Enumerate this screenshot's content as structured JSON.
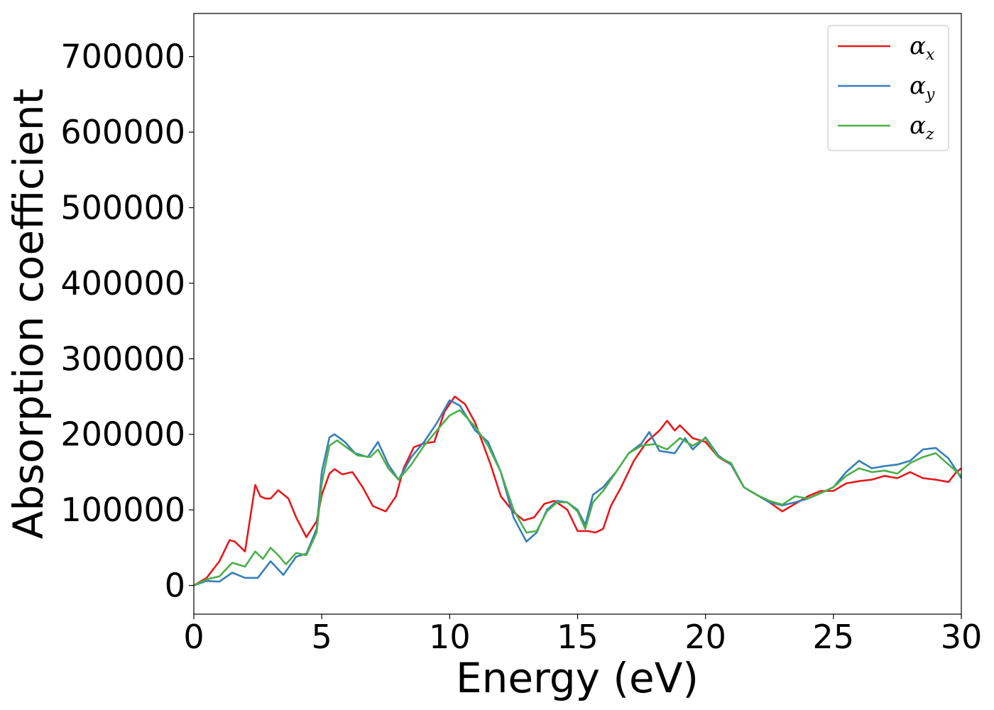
{
  "chart_data": {
    "type": "line",
    "title": "",
    "xlabel": "Energy (eV)",
    "ylabel": "Absorption coefficient",
    "xlim": [
      0,
      30
    ],
    "ylim": [
      -38000,
      757000
    ],
    "xticks": [
      0,
      5,
      10,
      15,
      20,
      25,
      30
    ],
    "yticks": [
      0,
      100000,
      200000,
      300000,
      400000,
      500000,
      600000,
      700000
    ],
    "xtick_labels": [
      "0",
      "5",
      "10",
      "15",
      "20",
      "25",
      "30"
    ],
    "ytick_labels": [
      "0",
      "100000",
      "200000",
      "300000",
      "400000",
      "500000",
      "600000",
      "700000"
    ],
    "grid": false,
    "legend_position": "top-right",
    "series": [
      {
        "name": "αx",
        "label_base": "α",
        "label_sub": "x",
        "color": "#e41a1c",
        "x": [
          0,
          0.5,
          1.0,
          1.4,
          1.6,
          2.0,
          2.4,
          2.6,
          2.8,
          3.0,
          3.3,
          3.7,
          4.0,
          4.4,
          4.8,
          5.0,
          5.3,
          5.5,
          5.8,
          6.2,
          6.6,
          7.0,
          7.5,
          7.9,
          8.2,
          8.6,
          9.0,
          9.4,
          9.8,
          10.2,
          10.6,
          11.0,
          11.6,
          12.0,
          12.5,
          12.9,
          13.3,
          13.7,
          14.1,
          14.6,
          15.0,
          15.4,
          15.7,
          16.0,
          16.3,
          16.7,
          17.2,
          17.7,
          18.2,
          18.5,
          18.8,
          19.0,
          19.5,
          20.0,
          20.5,
          21.0,
          21.5,
          22.0,
          22.5,
          23.0,
          23.5,
          24.0,
          24.5,
          25.0,
          25.5,
          26.0,
          26.5,
          27.0,
          27.5,
          28.0,
          28.5,
          29.0,
          29.5,
          29.8,
          30.0
        ],
        "y": [
          0,
          10000,
          32000,
          60000,
          58000,
          45000,
          133000,
          118000,
          115000,
          115000,
          126000,
          115000,
          90000,
          64000,
          85000,
          120000,
          148000,
          154000,
          147000,
          150000,
          130000,
          105000,
          98000,
          118000,
          155000,
          183000,
          188000,
          190000,
          230000,
          250000,
          240000,
          215000,
          160000,
          118000,
          97000,
          86000,
          90000,
          108000,
          112000,
          100000,
          72000,
          72000,
          70000,
          75000,
          105000,
          130000,
          165000,
          190000,
          205000,
          218000,
          205000,
          212000,
          195000,
          190000,
          170000,
          160000,
          130000,
          120000,
          110000,
          98000,
          108000,
          118000,
          125000,
          125000,
          135000,
          138000,
          140000,
          145000,
          142000,
          150000,
          142000,
          140000,
          137000,
          150000,
          155000
        ]
      },
      {
        "name": "αy",
        "label_base": "α",
        "label_sub": "y",
        "color": "#377eb8",
        "x": [
          0,
          0.5,
          1.0,
          1.5,
          2.0,
          2.5,
          3.0,
          3.5,
          4.0,
          4.4,
          4.8,
          5.0,
          5.3,
          5.5,
          5.9,
          6.3,
          6.8,
          7.2,
          7.6,
          8.0,
          8.5,
          9.0,
          9.5,
          10.0,
          10.4,
          11.0,
          11.5,
          12.0,
          12.5,
          13.0,
          13.4,
          13.8,
          14.2,
          14.6,
          15.0,
          15.3,
          15.6,
          16.0,
          16.5,
          17.0,
          17.5,
          17.8,
          18.2,
          18.8,
          19.2,
          19.5,
          20.0,
          20.5,
          21.0,
          21.5,
          22.0,
          22.5,
          23.0,
          23.5,
          24.0,
          24.5,
          25.0,
          25.5,
          26.0,
          26.5,
          27.0,
          27.5,
          28.0,
          28.5,
          29.0,
          29.5,
          30.0
        ],
        "y": [
          0,
          6000,
          5000,
          17000,
          10000,
          10000,
          32000,
          14000,
          38000,
          42000,
          75000,
          150000,
          196000,
          200000,
          190000,
          175000,
          170000,
          190000,
          160000,
          140000,
          170000,
          190000,
          215000,
          245000,
          238000,
          205000,
          190000,
          150000,
          90000,
          58000,
          70000,
          100000,
          112000,
          110000,
          100000,
          80000,
          120000,
          130000,
          150000,
          175000,
          188000,
          203000,
          178000,
          175000,
          195000,
          180000,
          196000,
          172000,
          160000,
          130000,
          120000,
          110000,
          106000,
          110000,
          115000,
          122000,
          130000,
          150000,
          165000,
          155000,
          158000,
          160000,
          165000,
          180000,
          182000,
          168000,
          142000
        ]
      },
      {
        "name": "αz",
        "label_base": "α",
        "label_sub": "z",
        "color": "#4daf4a",
        "x": [
          0,
          0.5,
          1.0,
          1.5,
          2.0,
          2.4,
          2.7,
          3.0,
          3.3,
          3.6,
          4.0,
          4.4,
          4.8,
          5.0,
          5.3,
          5.6,
          6.0,
          6.4,
          6.9,
          7.2,
          7.6,
          8.0,
          8.5,
          9.0,
          9.5,
          10.0,
          10.4,
          11.0,
          11.5,
          12.0,
          12.5,
          13.0,
          13.4,
          13.8,
          14.2,
          14.6,
          15.0,
          15.3,
          15.6,
          16.0,
          16.5,
          17.0,
          17.5,
          18.0,
          18.5,
          19.0,
          19.5,
          20.0,
          20.5,
          21.0,
          21.5,
          22.0,
          22.5,
          23.0,
          23.5,
          24.0,
          24.5,
          25.0,
          25.5,
          26.0,
          26.5,
          27.0,
          27.5,
          28.0,
          28.5,
          29.0,
          29.5,
          30.0
        ],
        "y": [
          0,
          8000,
          12000,
          30000,
          25000,
          45000,
          35000,
          50000,
          40000,
          28000,
          43000,
          40000,
          70000,
          135000,
          185000,
          192000,
          182000,
          172000,
          170000,
          180000,
          155000,
          140000,
          160000,
          185000,
          205000,
          225000,
          232000,
          210000,
          185000,
          150000,
          100000,
          70000,
          72000,
          98000,
          110000,
          110000,
          98000,
          75000,
          110000,
          125000,
          150000,
          175000,
          185000,
          187000,
          180000,
          195000,
          185000,
          195000,
          170000,
          162000,
          130000,
          120000,
          112000,
          107000,
          118000,
          115000,
          122000,
          130000,
          145000,
          155000,
          150000,
          152000,
          148000,
          162000,
          170000,
          175000,
          160000,
          145000
        ]
      }
    ]
  }
}
